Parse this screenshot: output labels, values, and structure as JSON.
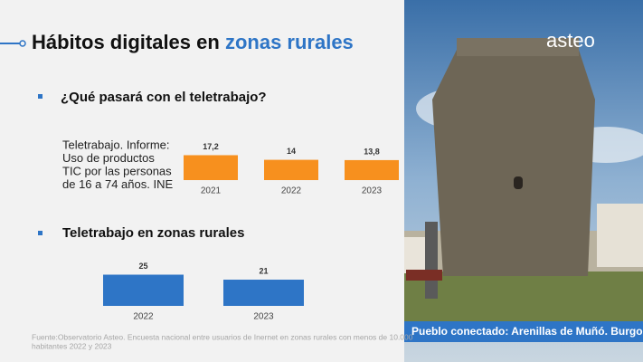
{
  "title_part1": "Hábitos digitales en",
  "title_part2": "zonas rurales",
  "section1": "¿Qué pasará con el teletrabajo?",
  "source_note": [
    "Teletrabajo. Informe:",
    "Uso de productos",
    "TIC por las personas",
    "de 16 a 74 años. INE"
  ],
  "section2": "Teletrabajo en zonas rurales",
  "footnote": [
    "Fuente:Observatorio Asteo. Encuesta nacional entre usuarios de Inernet  en zonas rurales con menos de 10.000",
    "habitantes 2022 y 2023"
  ],
  "logo": "asteo",
  "photo_caption": "Pueblo conectado: Arenillas de Muñó. Burgos",
  "chart_data": [
    {
      "type": "bar",
      "categories": [
        "2021",
        "2022",
        "2023"
      ],
      "values": [
        17.2,
        14,
        13.8
      ],
      "value_labels": [
        "17,2",
        "14",
        "13,8"
      ],
      "color": "#f7901e"
    },
    {
      "type": "bar",
      "categories": [
        "2022",
        "2023"
      ],
      "values": [
        25,
        21
      ],
      "color": "#2e75c6"
    }
  ]
}
